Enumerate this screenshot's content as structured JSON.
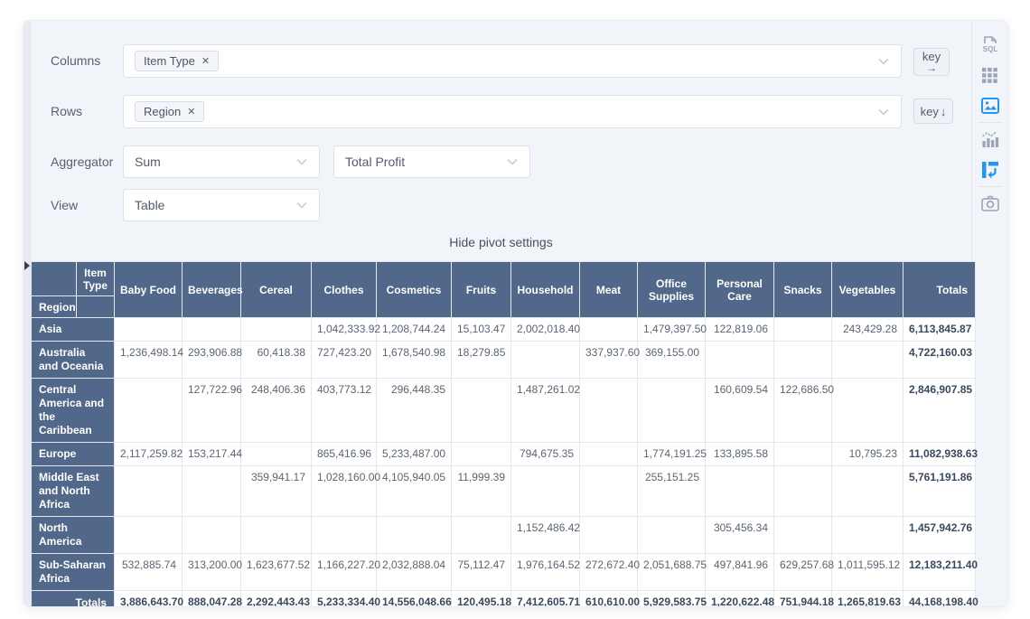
{
  "controls": {
    "columns": {
      "label": "Columns",
      "tag": "Item Type",
      "remove_glyph": "✕"
    },
    "rows": {
      "label": "Rows",
      "tag": "Region",
      "remove_glyph": "✕"
    },
    "aggregator": {
      "label": "Aggregator",
      "value": "Sum",
      "field": "Total Profit"
    },
    "view": {
      "label": "View",
      "value": "Table"
    },
    "key_col_button": {
      "label": "key",
      "arrow": "→"
    },
    "key_row_button": {
      "label": "key",
      "arrow": "↓"
    },
    "hide_settings_link": "Hide pivot settings"
  },
  "sidebar": {
    "icons": [
      {
        "name": "sql-icon",
        "active": false
      },
      {
        "name": "table-grid-icon",
        "active": false
      },
      {
        "name": "image-icon",
        "active": true
      },
      {
        "name": "combo-chart-icon",
        "active": false
      },
      {
        "name": "pivot-icon",
        "active": true
      },
      {
        "name": "camera-icon",
        "active": false
      }
    ]
  },
  "colors": {
    "accent_blue": "#2196f3",
    "header_bg": "#52688a",
    "totals_text": "#3a4a5e"
  },
  "pivot": {
    "col_axis_label": "Item Type",
    "row_axis_label": "Region",
    "columns": [
      "Baby Food",
      "Beverages",
      "Cereal",
      "Clothes",
      "Cosmetics",
      "Fruits",
      "Household",
      "Meat",
      "Office Supplies",
      "Personal Care",
      "Snacks",
      "Vegetables"
    ],
    "totals_label": "Totals",
    "rows": [
      {
        "label": "Asia",
        "values": [
          "",
          "",
          "",
          "1,042,333.92",
          "1,208,744.24",
          "15,103.47",
          "2,002,018.40",
          "",
          "1,479,397.50",
          "122,819.06",
          "",
          "243,429.28"
        ],
        "total": "6,113,845.87"
      },
      {
        "label": "Australia and Oceania",
        "values": [
          "1,236,498.14",
          "293,906.88",
          "60,418.38",
          "727,423.20",
          "1,678,540.98",
          "18,279.85",
          "",
          "337,937.60",
          "369,155.00",
          "",
          "",
          ""
        ],
        "total": "4,722,160.03"
      },
      {
        "label": "Central America and the Caribbean",
        "values": [
          "",
          "127,722.96",
          "248,406.36",
          "403,773.12",
          "296,448.35",
          "",
          "1,487,261.02",
          "",
          "",
          "160,609.54",
          "122,686.50",
          ""
        ],
        "total": "2,846,907.85"
      },
      {
        "label": "Europe",
        "values": [
          "2,117,259.82",
          "153,217.44",
          "",
          "865,416.96",
          "5,233,487.00",
          "",
          "794,675.35",
          "",
          "1,774,191.25",
          "133,895.58",
          "",
          "10,795.23"
        ],
        "total": "11,082,938.63"
      },
      {
        "label": "Middle East and North Africa",
        "values": [
          "",
          "",
          "359,941.17",
          "1,028,160.00",
          "4,105,940.05",
          "11,999.39",
          "",
          "",
          "255,151.25",
          "",
          "",
          ""
        ],
        "total": "5,761,191.86"
      },
      {
        "label": "North America",
        "values": [
          "",
          "",
          "",
          "",
          "",
          "",
          "1,152,486.42",
          "",
          "",
          "305,456.34",
          "",
          ""
        ],
        "total": "1,457,942.76"
      },
      {
        "label": "Sub-Saharan Africa",
        "values": [
          "532,885.74",
          "313,200.00",
          "1,623,677.52",
          "1,166,227.20",
          "2,032,888.04",
          "75,112.47",
          "1,976,164.52",
          "272,672.40",
          "2,051,688.75",
          "497,841.96",
          "629,257.68",
          "1,011,595.12"
        ],
        "total": "12,183,211.40"
      }
    ],
    "totals_row": {
      "label": "Totals",
      "values": [
        "3,886,643.70",
        "888,047.28",
        "2,292,443.43",
        "5,233,334.40",
        "14,556,048.66",
        "120,495.18",
        "7,412,605.71",
        "610,610.00",
        "5,929,583.75",
        "1,220,622.48",
        "751,944.18",
        "1,265,819.63"
      ],
      "grand_total": "44,168,198.40"
    }
  }
}
